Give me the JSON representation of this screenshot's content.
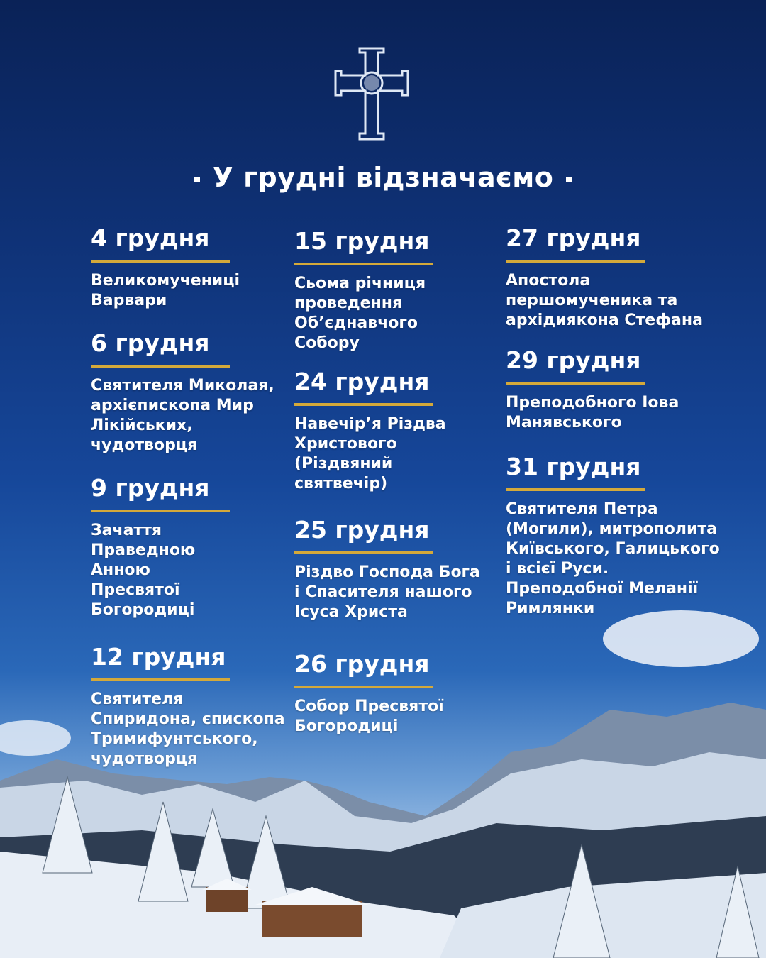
{
  "title": "У грудні відзначаємо",
  "logo": {
    "name": "cross-emblem-icon"
  },
  "colors": {
    "accent": "#d4a93a",
    "background_top": "#0a2257",
    "background_mid": "#16479a"
  },
  "columns": [
    [
      {
        "date": "4 грудня",
        "description": "Великомучениці\nВарвари"
      },
      {
        "date": "6 грудня",
        "description": "Святителя Миколая,\nархієпископа Мир\nЛікійських,\nчудотворця"
      },
      {
        "date": "9 грудня",
        "description": "Зачаття\nПраведною\nАнною\nПресвятої\nБогородиці"
      },
      {
        "date": "12 грудня",
        "description": "Святителя\nСпиридона, єпископа\nТримифунтського,\nчудотворця"
      }
    ],
    [
      {
        "date": "15 грудня",
        "description": "Сьома річниця\nпроведення\nОб’єднавчого\nСобору"
      },
      {
        "date": "24 грудня",
        "description": "Навечір’я Різдва\nХристового\n(Різдвяний\nсвятвечір)"
      },
      {
        "date": "25 грудня",
        "description": "Різдво Господа Бога\nі Спасителя нашого\nІсуса Христа"
      },
      {
        "date": "26 грудня",
        "description": "Собор Пресвятої\nБогородиці"
      }
    ],
    [
      {
        "date": "27 грудня",
        "description": "Апостола\nпершомученика та\nархідиякона Стефана"
      },
      {
        "date": "29 грудня",
        "description": "Преподобного Іова\nМанявського"
      },
      {
        "date": "31 грудня",
        "description": "Святителя Петра\n(Могили), митрополита\nКиївського, Галицького\nі всієї Руси.\nПреподобної Меланії\nРимлянки"
      }
    ]
  ]
}
